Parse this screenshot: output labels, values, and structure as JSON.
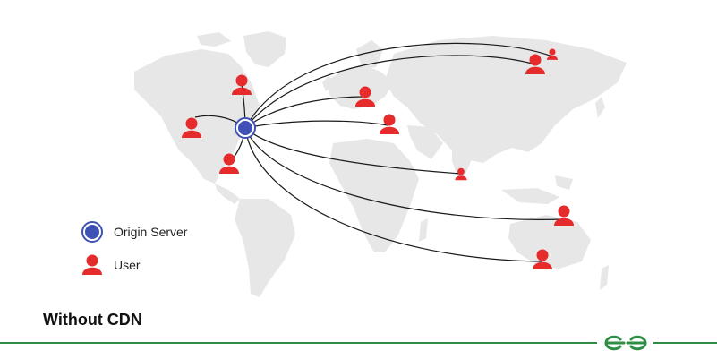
{
  "legend": {
    "origin_server_label": "Origin Server",
    "user_label": "User"
  },
  "caption": "Without CDN",
  "brand": {
    "name": "GeeksforGeeks",
    "logo_color": "#2f8d46"
  },
  "colors": {
    "server_fill": "#3f51b5",
    "user_fill": "#e52b2b",
    "map_fill": "#e7e7e7",
    "link_stroke": "#1a1a1a"
  },
  "icons": {
    "server": "origin-server-icon",
    "user": "user-icon"
  }
}
